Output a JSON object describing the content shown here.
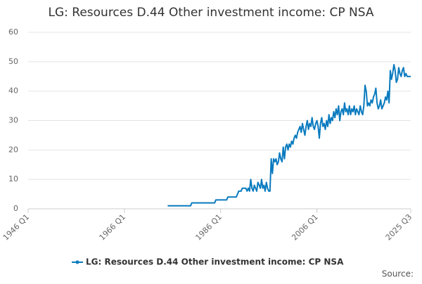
{
  "chart_data": {
    "type": "line",
    "title": "LG: Resources D.44 Other investment income: CP NSA",
    "source": "Source:",
    "xlim": [
      1946,
      2025.5
    ],
    "xticks": [
      {
        "value": 1946,
        "label": "1946 Q1"
      },
      {
        "value": 1966,
        "label": "1966 Q1"
      },
      {
        "value": 1986,
        "label": "1986 Q1"
      },
      {
        "value": 2006,
        "label": "2006 Q1"
      },
      {
        "value": 2025.5,
        "label": "2025 Q3"
      }
    ],
    "ylim": [
      0,
      60
    ],
    "yticks": [
      0,
      10,
      20,
      30,
      40,
      50,
      60
    ],
    "grid": true,
    "legend": "bottom",
    "x": [
      1975,
      1975.25,
      1975.5,
      1975.75,
      1976,
      1976.25,
      1976.5,
      1976.75,
      1977,
      1977.25,
      1977.5,
      1977.75,
      1978,
      1978.25,
      1978.5,
      1978.75,
      1979,
      1979.25,
      1979.5,
      1979.75,
      1980,
      1980.25,
      1980.5,
      1980.75,
      1981,
      1981.25,
      1981.5,
      1981.75,
      1982,
      1982.25,
      1982.5,
      1982.75,
      1983,
      1983.25,
      1983.5,
      1983.75,
      1984,
      1984.25,
      1984.5,
      1984.75,
      1985,
      1985.25,
      1985.5,
      1985.75,
      1986,
      1986.25,
      1986.5,
      1986.75,
      1987,
      1987.25,
      1987.5,
      1987.75,
      1988,
      1988.25,
      1988.5,
      1988.75,
      1989,
      1989.25,
      1989.5,
      1989.75,
      1990,
      1990.25,
      1990.5,
      1990.75,
      1991,
      1991.25,
      1991.5,
      1991.75,
      1992,
      1992.25,
      1992.5,
      1992.75,
      1993,
      1993.25,
      1993.5,
      1993.75,
      1994,
      1994.25,
      1994.5,
      1994.75,
      1995,
      1995.25,
      1995.5,
      1995.75,
      1996,
      1996.25,
      1996.5,
      1996.75,
      1997,
      1997.25,
      1997.5,
      1997.75,
      1998,
      1998.25,
      1998.5,
      1998.75,
      1999,
      1999.25,
      1999.5,
      1999.75,
      2000,
      2000.25,
      2000.5,
      2000.75,
      2001,
      2001.25,
      2001.5,
      2001.75,
      2002,
      2002.25,
      2002.5,
      2002.75,
      2003,
      2003.25,
      2003.5,
      2003.75,
      2004,
      2004.25,
      2004.5,
      2004.75,
      2005,
      2005.25,
      2005.5,
      2005.75,
      2006,
      2006.25,
      2006.5,
      2006.75,
      2007,
      2007.25,
      2007.5,
      2007.75,
      2008,
      2008.25,
      2008.5,
      2008.75,
      2009,
      2009.25,
      2009.5,
      2009.75,
      2010,
      2010.25,
      2010.5,
      2010.75,
      2011,
      2011.25,
      2011.5,
      2011.75,
      2012,
      2012.25,
      2012.5,
      2012.75,
      2013,
      2013.25,
      2013.5,
      2013.75,
      2014,
      2014.25,
      2014.5,
      2014.75,
      2015,
      2015.25,
      2015.5,
      2015.75,
      2016,
      2016.25,
      2016.5,
      2016.75,
      2017,
      2017.25,
      2017.5,
      2017.75,
      2018,
      2018.25,
      2018.5,
      2018.75,
      2019,
      2019.25,
      2019.5,
      2019.75,
      2020,
      2020.25,
      2020.5,
      2020.75,
      2021,
      2021.25,
      2021.5,
      2021.75,
      2022,
      2022.25,
      2022.5,
      2022.75,
      2023,
      2023.25,
      2023.5,
      2023.75,
      2024,
      2024.25,
      2024.5,
      2024.75,
      2025,
      2025.25,
      2025.5
    ],
    "series": [
      {
        "name": "LG: Resources D.44 Other investment income: CP NSA",
        "color": "#0a7bbf",
        "values": [
          1,
          1,
          1,
          1,
          1,
          1,
          1,
          1,
          1,
          1,
          1,
          1,
          1,
          1,
          1,
          1,
          1,
          1,
          1,
          1,
          2,
          2,
          2,
          2,
          2,
          2,
          2,
          2,
          2,
          2,
          2,
          2,
          2,
          2,
          2,
          2,
          2,
          2,
          2,
          2,
          3,
          3,
          3,
          3,
          3,
          3,
          3,
          3,
          3,
          3,
          4,
          4,
          4,
          4,
          4,
          4,
          4,
          4,
          5,
          6,
          6,
          6,
          7,
          7,
          7,
          7,
          6,
          7,
          6,
          10,
          7,
          6,
          8,
          7,
          6,
          9,
          8,
          7,
          10,
          7,
          8,
          6,
          9,
          7,
          6,
          6,
          17,
          12,
          17,
          16,
          17,
          15,
          16,
          19,
          17,
          16,
          21,
          17,
          21,
          22,
          20,
          22,
          21,
          23,
          22,
          24,
          25,
          24,
          26,
          27,
          28,
          26,
          29,
          27,
          25,
          28,
          30,
          27,
          29,
          28,
          31,
          28,
          27,
          29,
          30,
          28,
          24,
          29,
          31,
          28,
          29,
          27,
          30,
          28,
          32,
          29,
          31,
          30,
          33,
          31,
          34,
          32,
          35,
          30,
          33,
          34,
          32,
          36,
          33,
          34,
          32,
          35,
          32,
          34,
          33,
          35,
          32,
          34,
          33,
          32,
          35,
          33,
          32,
          35,
          42,
          40,
          35,
          36,
          35,
          37,
          36,
          38,
          39,
          41,
          36,
          34,
          35,
          37,
          34,
          35,
          36,
          38,
          37,
          40,
          36,
          47,
          44,
          46,
          49,
          47,
          43,
          44,
          48,
          46,
          45,
          47,
          48,
          45,
          46,
          45,
          45,
          45,
          45
        ]
      }
    ]
  }
}
